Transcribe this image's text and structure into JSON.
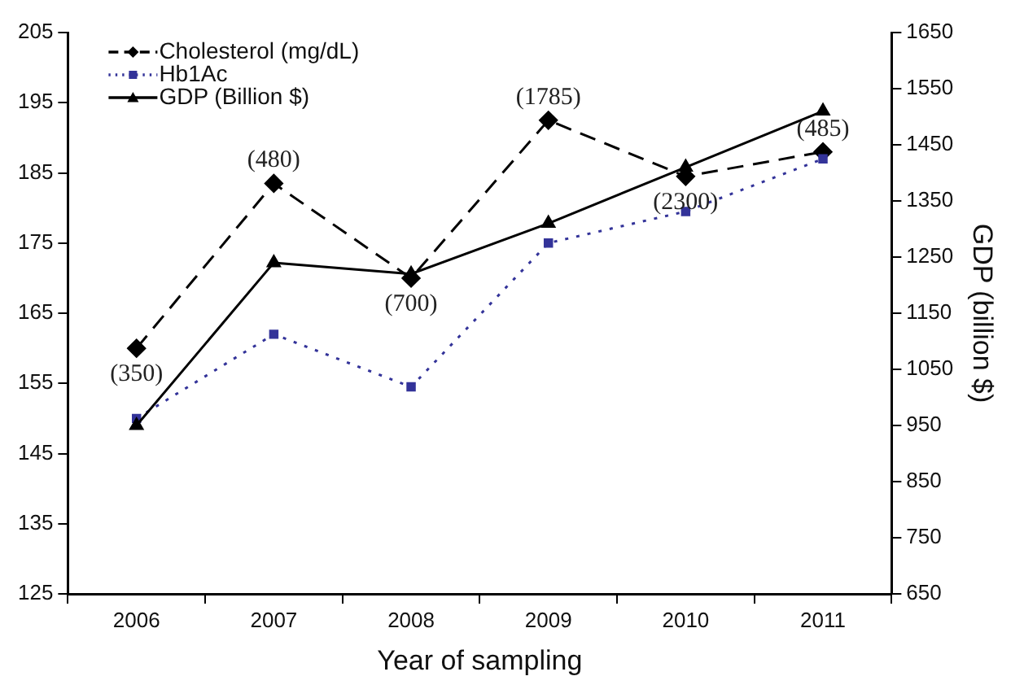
{
  "chart_data": {
    "type": "line",
    "xlabel": "Year of sampling",
    "y2label": "GDP (billion $)",
    "categories": [
      "2006",
      "2007",
      "2008",
      "2009",
      "2010",
      "2011"
    ],
    "series": [
      {
        "name": "Cholesterol (mg/dL)",
        "color": "#000000",
        "values": [
          160,
          183.5,
          170,
          192.5,
          184.5,
          188
        ],
        "marker": "diamond",
        "line_style": "dashed"
      },
      {
        "name": "Hb1Ac",
        "color": "#333399",
        "values": [
          150,
          162,
          154.5,
          175,
          179.5,
          187
        ],
        "marker": "square",
        "line_style": "dotted"
      },
      {
        "name": "GDP (Billion $)",
        "color": "#000000",
        "values": [
          950,
          1240,
          1220,
          1310,
          1410,
          1510
        ],
        "marker": "triangle",
        "line_style": "solid",
        "axis": "y2"
      }
    ],
    "ylim": [
      125,
      205
    ],
    "yticks": [
      125,
      135,
      145,
      155,
      165,
      175,
      185,
      195,
      205
    ],
    "y2lim": [
      650,
      1650
    ],
    "y2ticks": [
      650,
      750,
      850,
      950,
      1050,
      1150,
      1250,
      1350,
      1450,
      1550,
      1650
    ],
    "annotations": [
      {
        "text": "(350)",
        "x": "2006",
        "y": 160
      },
      {
        "text": "(480)",
        "x": "2007",
        "y": 183.5
      },
      {
        "text": "(700)",
        "x": "2008",
        "y": 170
      },
      {
        "text": "(1785)",
        "x": "2009",
        "y": 192.5
      },
      {
        "text": "(2300)",
        "x": "2010",
        "y": 184.5
      },
      {
        "text": "(485)",
        "x": "2011",
        "y": 188
      }
    ],
    "grid": false,
    "legend": "top left"
  }
}
